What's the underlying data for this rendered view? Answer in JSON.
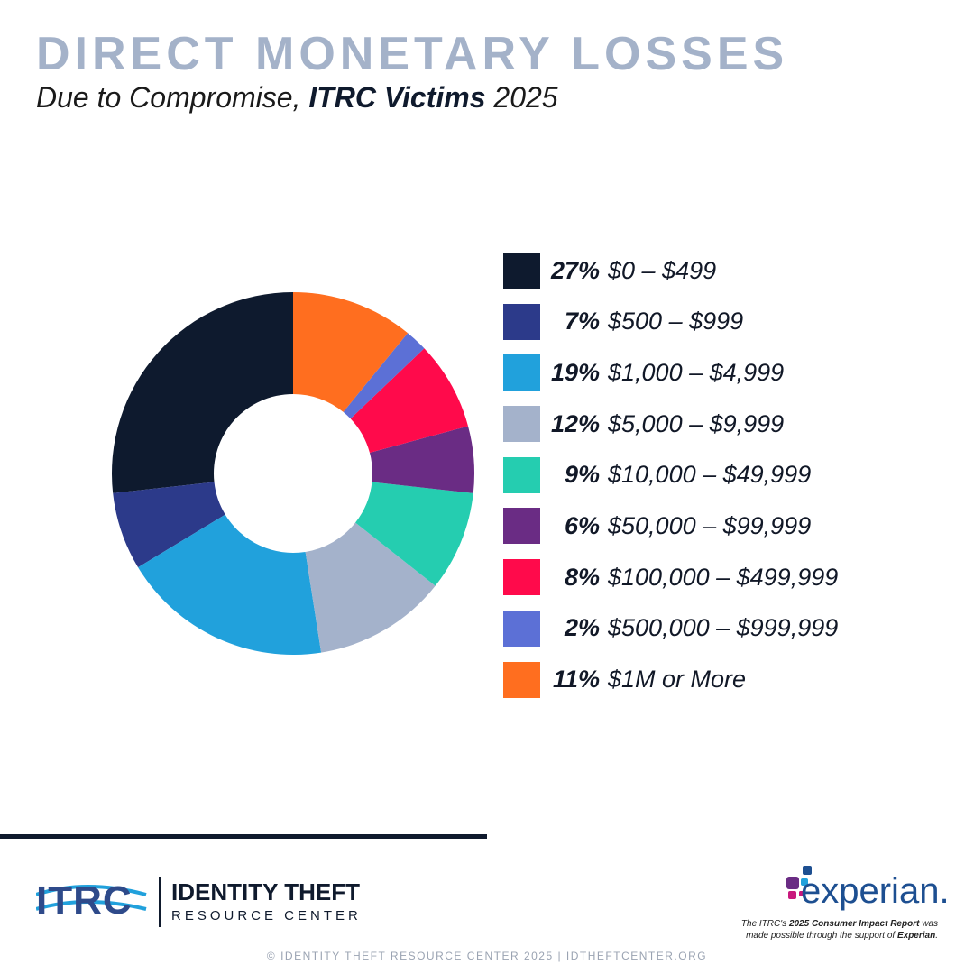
{
  "header": {
    "title": "DIRECT MONETARY LOSSES",
    "subtitle_pre": "Due to Compromise, ",
    "subtitle_emph": "ITRC Victims",
    "subtitle_post": " 2025"
  },
  "chart_data": {
    "type": "pie",
    "donut": true,
    "categories": [
      "$0 – $499",
      "$500 – $999",
      "$1,000 – $4,999",
      "$5,000 – $9,999",
      "$10,000 – $49,999",
      "$50,000 – $99,999",
      "$100,000 – $499,999",
      "$500,000 – $999,999",
      "$1M or More"
    ],
    "values": [
      27,
      7,
      19,
      12,
      9,
      6,
      8,
      2,
      11
    ],
    "percent_labels": [
      "27%",
      "7%",
      "19%",
      "12%",
      "9%",
      "6%",
      "8%",
      "2%",
      "11%"
    ],
    "colors": [
      "#0e1a2e",
      "#2c3a8a",
      "#21a1dc",
      "#a4b2cb",
      "#25cdb0",
      "#6a2c84",
      "#ff0a4b",
      "#5c70d6",
      "#ff6e1f"
    ],
    "legend_position": "right",
    "slice_order": "counterclockwise from top"
  },
  "footer": {
    "itrc_logo_text": "ITRC",
    "itrc_name": "IDENTITY THEFT",
    "itrc_sub": "RESOURCE CENTER",
    "experian_word": "experian.",
    "note_pre": "The ITRC's ",
    "note_bold1": "2025 Consumer Impact Report",
    "note_mid": " was made possible through the support of ",
    "note_bold2": "Experian",
    "note_end": ".",
    "copyright": "© IDENTITY THEFT RESOURCE CENTER 2025  |  IDTHEFTCENTER.ORG"
  }
}
